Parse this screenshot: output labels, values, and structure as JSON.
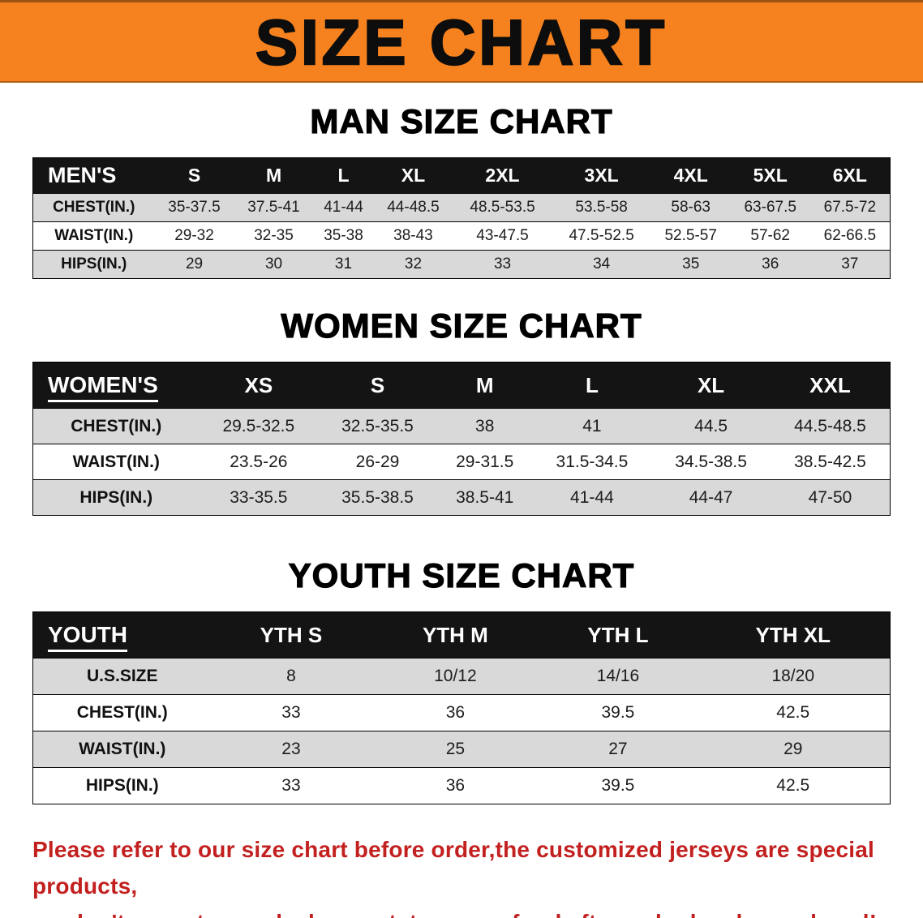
{
  "banner": {
    "title": "SIZE CHART",
    "bg_color": "#f6821f",
    "title_color": "#0d0d0d"
  },
  "sections": {
    "men": {
      "heading": "MAN SIZE CHART",
      "header": [
        "MEN'S",
        "S",
        "M",
        "L",
        "XL",
        "2XL",
        "3XL",
        "4XL",
        "5XL",
        "6XL"
      ],
      "rows": [
        [
          "CHEST(IN.)",
          "35-37.5",
          "37.5-41",
          "41-44",
          "44-48.5",
          "48.5-53.5",
          "53.5-58",
          "58-63",
          "63-67.5",
          "67.5-72"
        ],
        [
          "WAIST(IN.)",
          "29-32",
          "32-35",
          "35-38",
          "38-43",
          "43-47.5",
          "47.5-52.5",
          "52.5-57",
          "57-62",
          "62-66.5"
        ],
        [
          "HIPS(IN.)",
          "29",
          "30",
          "31",
          "32",
          "33",
          "34",
          "35",
          "36",
          "37"
        ]
      ]
    },
    "women": {
      "heading": "WOMEN SIZE CHART",
      "header": [
        "WOMEN'S",
        "XS",
        "S",
        "M",
        "L",
        "XL",
        "XXL"
      ],
      "rows": [
        [
          "CHEST(IN.)",
          "29.5-32.5",
          "32.5-35.5",
          "38",
          "41",
          "44.5",
          "44.5-48.5"
        ],
        [
          "WAIST(IN.)",
          "23.5-26",
          "26-29",
          "29-31.5",
          "31.5-34.5",
          "34.5-38.5",
          "38.5-42.5"
        ],
        [
          "HIPS(IN.)",
          "33-35.5",
          "35.5-38.5",
          "38.5-41",
          "41-44",
          "44-47",
          "47-50"
        ]
      ]
    },
    "youth": {
      "heading": "YOUTH SIZE CHART",
      "header": [
        "YOUTH",
        "YTH S",
        "YTH M",
        "YTH L",
        "YTH XL"
      ],
      "rows": [
        [
          "U.S.SIZE",
          "8",
          "10/12",
          "14/16",
          "18/20"
        ],
        [
          "CHEST(IN.)",
          "33",
          "36",
          "39.5",
          "42.5"
        ],
        [
          "WAIST(IN.)",
          "23",
          "25",
          "27",
          "29"
        ],
        [
          "HIPS(IN.)",
          "33",
          "36",
          "39.5",
          "42.5"
        ]
      ]
    }
  },
  "footer": {
    "line1": "Please refer to our size chart before order,the customized jerseys are special products,",
    "line2": "we don't accept cancel, change, teturn or refund after order has been placed!",
    "text_color": "#c32020"
  }
}
